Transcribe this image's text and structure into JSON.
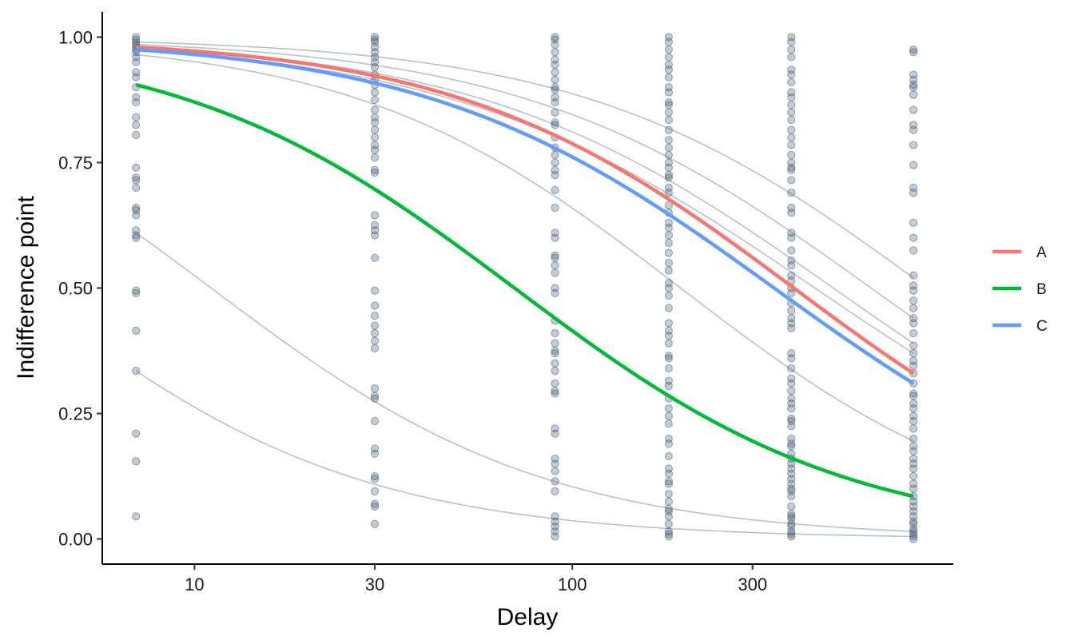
{
  "chart_data": {
    "type": "scatter",
    "title": "",
    "xlabel": "Delay",
    "ylabel": "Indifference point",
    "x_scale": "log10",
    "xlim": [
      5.7,
      1020
    ],
    "ylim": [
      -0.05,
      1.05
    ],
    "x_ticks": [
      {
        "value": 10,
        "label": "10"
      },
      {
        "value": 30,
        "label": "30"
      },
      {
        "value": 100,
        "label": "100"
      },
      {
        "value": 300,
        "label": "300"
      }
    ],
    "y_ticks": [
      {
        "value": 0.0,
        "label": "0.00"
      },
      {
        "value": 0.25,
        "label": "0.25"
      },
      {
        "value": 0.5,
        "label": "0.50"
      },
      {
        "value": 0.75,
        "label": "0.75"
      },
      {
        "value": 1.0,
        "label": "1.00"
      }
    ],
    "grid": false,
    "legend_position": "right",
    "legend": [
      {
        "name": "A",
        "color": "#f8766d"
      },
      {
        "name": "B",
        "color": "#00ba38"
      },
      {
        "name": "C",
        "color": "#619cff"
      }
    ],
    "point_color": "#4a6078",
    "individual_line_color": "#b8c2cc",
    "points": [
      {
        "x": 7,
        "y": [
          1.0,
          0.995,
          0.99,
          0.985,
          0.98,
          0.975,
          0.97,
          0.96,
          0.95,
          0.93,
          0.92,
          0.9,
          0.88,
          0.87,
          0.84,
          0.825,
          0.805,
          0.74,
          0.72,
          0.715,
          0.7,
          0.66,
          0.655,
          0.645,
          0.615,
          0.605,
          0.6,
          0.495,
          0.49,
          0.415,
          0.335,
          0.21,
          0.155,
          0.045
        ]
      },
      {
        "x": 30,
        "y": [
          1.0,
          0.995,
          0.99,
          0.98,
          0.97,
          0.96,
          0.95,
          0.94,
          0.925,
          0.915,
          0.905,
          0.89,
          0.875,
          0.855,
          0.84,
          0.83,
          0.815,
          0.8,
          0.785,
          0.775,
          0.76,
          0.735,
          0.73,
          0.645,
          0.625,
          0.615,
          0.605,
          0.56,
          0.495,
          0.465,
          0.445,
          0.425,
          0.41,
          0.395,
          0.38,
          0.3,
          0.285,
          0.28,
          0.235,
          0.18,
          0.17,
          0.125,
          0.12,
          0.095,
          0.07,
          0.065,
          0.03
        ]
      },
      {
        "x": 90,
        "y": [
          1.0,
          0.995,
          0.985,
          0.97,
          0.955,
          0.945,
          0.93,
          0.915,
          0.9,
          0.895,
          0.88,
          0.87,
          0.85,
          0.83,
          0.825,
          0.8,
          0.78,
          0.765,
          0.75,
          0.735,
          0.725,
          0.695,
          0.66,
          0.61,
          0.6,
          0.565,
          0.56,
          0.545,
          0.53,
          0.5,
          0.49,
          0.435,
          0.41,
          0.39,
          0.375,
          0.37,
          0.35,
          0.335,
          0.31,
          0.295,
          0.29,
          0.22,
          0.21,
          0.16,
          0.15,
          0.135,
          0.115,
          0.095,
          0.045,
          0.035,
          0.025,
          0.015,
          0.005
        ]
      },
      {
        "x": 180,
        "y": [
          1.0,
          0.99,
          0.975,
          0.96,
          0.945,
          0.935,
          0.92,
          0.9,
          0.89,
          0.87,
          0.865,
          0.85,
          0.835,
          0.815,
          0.795,
          0.78,
          0.765,
          0.75,
          0.74,
          0.725,
          0.72,
          0.7,
          0.69,
          0.665,
          0.65,
          0.63,
          0.62,
          0.605,
          0.59,
          0.57,
          0.55,
          0.535,
          0.51,
          0.5,
          0.485,
          0.46,
          0.43,
          0.415,
          0.405,
          0.39,
          0.365,
          0.36,
          0.34,
          0.315,
          0.305,
          0.28,
          0.26,
          0.245,
          0.23,
          0.2,
          0.19,
          0.165,
          0.14,
          0.13,
          0.115,
          0.11,
          0.09,
          0.075,
          0.06,
          0.055,
          0.045,
          0.03,
          0.015,
          0.01,
          0.005
        ]
      },
      {
        "x": 380,
        "y": [
          1.0,
          0.99,
          0.975,
          0.96,
          0.935,
          0.925,
          0.91,
          0.89,
          0.88,
          0.865,
          0.85,
          0.835,
          0.815,
          0.8,
          0.785,
          0.765,
          0.75,
          0.74,
          0.735,
          0.715,
          0.69,
          0.66,
          0.65,
          0.61,
          0.6,
          0.575,
          0.555,
          0.545,
          0.525,
          0.515,
          0.5,
          0.49,
          0.47,
          0.455,
          0.44,
          0.43,
          0.42,
          0.37,
          0.36,
          0.34,
          0.32,
          0.31,
          0.295,
          0.28,
          0.27,
          0.26,
          0.24,
          0.235,
          0.225,
          0.2,
          0.19,
          0.185,
          0.17,
          0.16,
          0.15,
          0.14,
          0.13,
          0.12,
          0.11,
          0.1,
          0.095,
          0.085,
          0.065,
          0.05,
          0.045,
          0.04,
          0.03,
          0.025,
          0.015,
          0.01,
          0.005
        ]
      },
      {
        "x": 800,
        "y": [
          0.975,
          0.97,
          0.925,
          0.915,
          0.905,
          0.9,
          0.885,
          0.855,
          0.825,
          0.815,
          0.785,
          0.745,
          0.7,
          0.69,
          0.63,
          0.6,
          0.575,
          0.525,
          0.505,
          0.495,
          0.475,
          0.46,
          0.44,
          0.43,
          0.41,
          0.385,
          0.37,
          0.355,
          0.345,
          0.33,
          0.31,
          0.29,
          0.285,
          0.27,
          0.26,
          0.245,
          0.235,
          0.22,
          0.2,
          0.185,
          0.175,
          0.16,
          0.15,
          0.14,
          0.125,
          0.11,
          0.1,
          0.085,
          0.075,
          0.065,
          0.055,
          0.045,
          0.035,
          0.03,
          0.02,
          0.015,
          0.01,
          0.005,
          0.0
        ]
      }
    ],
    "individual_curves": [
      {
        "start": 0.99,
        "end": 0.52
      },
      {
        "start": 0.985,
        "end": 0.44
      },
      {
        "start": 0.98,
        "end": 0.39
      },
      {
        "start": 0.975,
        "end": 0.37
      },
      {
        "start": 0.965,
        "end": 0.195
      },
      {
        "start": 0.61,
        "end": 0.015
      },
      {
        "start": 0.335,
        "end": 0.005
      }
    ],
    "series": [
      {
        "name": "A",
        "color": "#f8766d",
        "start": 0.98,
        "end": 0.33
      },
      {
        "name": "B",
        "color": "#00ba38",
        "start": 0.905,
        "end": 0.085
      },
      {
        "name": "C",
        "color": "#619cff",
        "start": 0.975,
        "end": 0.31
      }
    ],
    "curve_x_range": [
      7,
      800
    ]
  }
}
